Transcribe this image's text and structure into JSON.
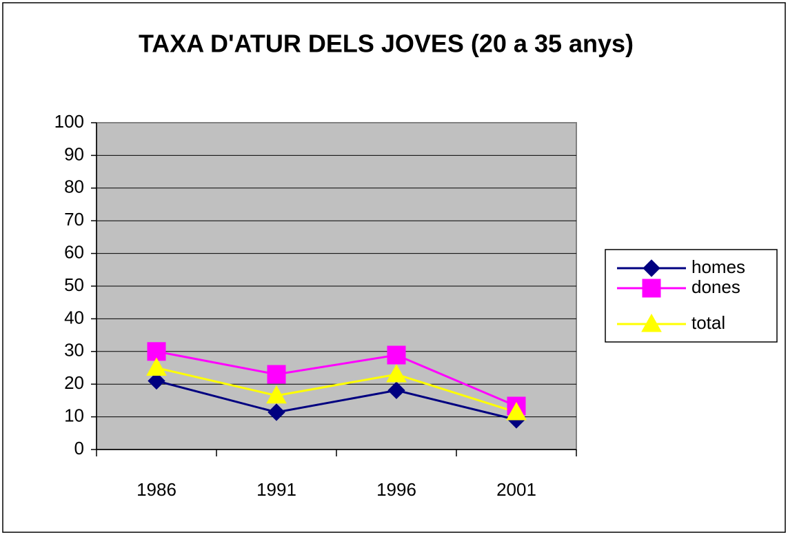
{
  "chart_data": {
    "type": "line",
    "title": "TAXA D'ATUR DELS JOVES (20 a 35 anys)",
    "categories": [
      "1986",
      "1991",
      "1996",
      "2001"
    ],
    "series": [
      {
        "name": "homes",
        "color": "#000080",
        "marker": "diamond",
        "values": [
          21,
          11.4,
          18.1,
          9.1
        ]
      },
      {
        "name": "dones",
        "color": "#ff00ff",
        "marker": "square",
        "values": [
          30,
          23,
          28.9,
          13.3
        ]
      },
      {
        "name": "total",
        "color": "#ffff00",
        "marker": "triangle",
        "values": [
          25,
          16.5,
          23,
          11.4
        ]
      }
    ],
    "ylim": [
      0,
      100
    ],
    "yticks": [
      0,
      10,
      20,
      30,
      40,
      50,
      60,
      70,
      80,
      90,
      100
    ],
    "grid": true,
    "legend": "right"
  }
}
